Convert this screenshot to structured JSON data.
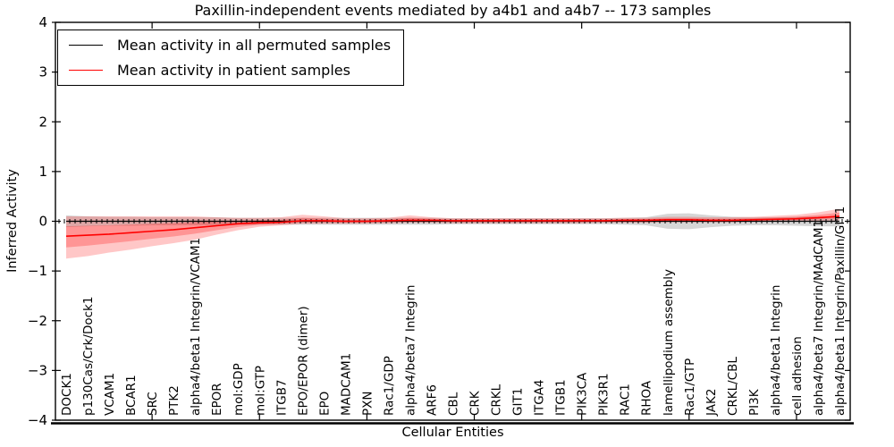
{
  "title": "Paxillin-independent events mediated by a4b1 and a4b7 -- 173 samples",
  "sample_count": "173",
  "legend": {
    "position": "upper left",
    "entries": [
      {
        "label": "Mean activity in all permuted samples",
        "color": "#000000"
      },
      {
        "label": "Mean activity in patient samples",
        "color": "#ff0000"
      }
    ]
  },
  "chart_data": {
    "type": "line",
    "title": "Paxillin-independent events mediated by a4b1 and a4b7 -- 173 samples",
    "xlabel": "Cellular Entities",
    "ylabel": "Inferred Activity",
    "ylim": [
      -4,
      4
    ],
    "yticks": [
      -4,
      -3,
      -2,
      -1,
      0,
      1,
      2,
      3,
      4
    ],
    "grid": false,
    "legend_position": "upper left",
    "categories": [
      "DOCK1",
      "p130Cas/Crk/Dock1",
      "VCAM1",
      "BCAR1",
      "SRC",
      "PTK2",
      "alpha4/beta1 Integrin/VCAM1",
      "EPOR",
      "mol:GDP",
      "mol:GTP",
      "ITGB7",
      "EPO/EPOR (dimer)",
      "EPO",
      "MADCAM1",
      "PXN",
      "Rac1/GDP",
      "alpha4/beta7 Integrin",
      "ARF6",
      "CBL",
      "CRK",
      "CRKL",
      "GIT1",
      "ITGA4",
      "ITGB1",
      "PIK3CA",
      "PIK3R1",
      "RAC1",
      "RHOA",
      "lamellipodium assembly",
      "Rac1/GTP",
      "JAK2",
      "CRKL/CBL",
      "PI3K",
      "alpha4/beta1 Integrin",
      "cell adhesion",
      "alpha4/beta7 Integrin/MAdCAM1",
      "alpha4/beta1 Integrin/Paxillin/GIT1"
    ],
    "series": [
      {
        "name": "Mean activity in all permuted samples",
        "color": "#000000",
        "values": [
          0,
          0,
          0,
          0,
          0,
          0,
          0,
          0,
          0,
          0,
          0,
          0,
          0,
          0,
          0,
          0,
          0,
          0,
          0,
          0,
          0,
          0,
          0,
          0,
          0,
          0,
          0,
          0,
          0,
          0,
          0,
          0,
          0,
          0,
          0,
          0,
          0
        ]
      },
      {
        "name": "Mean activity in patient samples",
        "color": "#ff0000",
        "values": [
          -0.3,
          -0.28,
          -0.26,
          -0.23,
          -0.2,
          -0.17,
          -0.13,
          -0.09,
          -0.05,
          -0.03,
          -0.02,
          0.01,
          0.01,
          0.0,
          0.0,
          0.01,
          0.02,
          0.02,
          0.01,
          0.01,
          0.01,
          0.01,
          0.01,
          0.01,
          0.01,
          0.01,
          0.02,
          0.02,
          0.03,
          0.03,
          0.02,
          0.02,
          0.03,
          0.04,
          0.05,
          0.07,
          0.1
        ]
      }
    ],
    "bands": [
      {
        "name": "permuted-range",
        "color": "#000000",
        "opacity": 0.16,
        "lower": [
          -0.12,
          -0.1,
          -0.09,
          -0.09,
          -0.08,
          -0.08,
          -0.08,
          -0.08,
          -0.07,
          -0.07,
          -0.07,
          -0.07,
          -0.07,
          -0.07,
          -0.07,
          -0.07,
          -0.07,
          -0.07,
          -0.06,
          -0.06,
          -0.06,
          -0.06,
          -0.06,
          -0.06,
          -0.06,
          -0.06,
          -0.07,
          -0.08,
          -0.15,
          -0.16,
          -0.12,
          -0.09,
          -0.08,
          -0.08,
          -0.09,
          -0.1,
          -0.1
        ],
        "upper": [
          0.12,
          0.1,
          0.09,
          0.09,
          0.08,
          0.08,
          0.08,
          0.08,
          0.07,
          0.07,
          0.07,
          0.07,
          0.07,
          0.07,
          0.07,
          0.07,
          0.07,
          0.07,
          0.06,
          0.06,
          0.06,
          0.06,
          0.06,
          0.06,
          0.06,
          0.06,
          0.07,
          0.08,
          0.15,
          0.16,
          0.12,
          0.09,
          0.08,
          0.08,
          0.09,
          0.1,
          0.1
        ]
      },
      {
        "name": "patient-range",
        "color": "#ff0000",
        "opacity": 0.22,
        "lower": [
          -0.75,
          -0.7,
          -0.63,
          -0.57,
          -0.5,
          -0.44,
          -0.37,
          -0.27,
          -0.18,
          -0.11,
          -0.08,
          -0.05,
          -0.05,
          -0.05,
          -0.05,
          -0.04,
          -0.03,
          -0.03,
          -0.04,
          -0.04,
          -0.04,
          -0.04,
          -0.04,
          -0.04,
          -0.04,
          -0.03,
          -0.03,
          -0.03,
          -0.02,
          -0.02,
          -0.02,
          -0.02,
          -0.01,
          0.0,
          0.0,
          0.01,
          0.02
        ],
        "upper": [
          0.1,
          0.1,
          0.1,
          0.1,
          0.1,
          0.1,
          0.1,
          0.08,
          0.07,
          0.07,
          0.08,
          0.13,
          0.1,
          0.06,
          0.06,
          0.07,
          0.12,
          0.08,
          0.06,
          0.06,
          0.06,
          0.06,
          0.06,
          0.06,
          0.06,
          0.06,
          0.07,
          0.07,
          0.09,
          0.09,
          0.08,
          0.08,
          0.09,
          0.11,
          0.13,
          0.18,
          0.25
        ]
      }
    ]
  }
}
